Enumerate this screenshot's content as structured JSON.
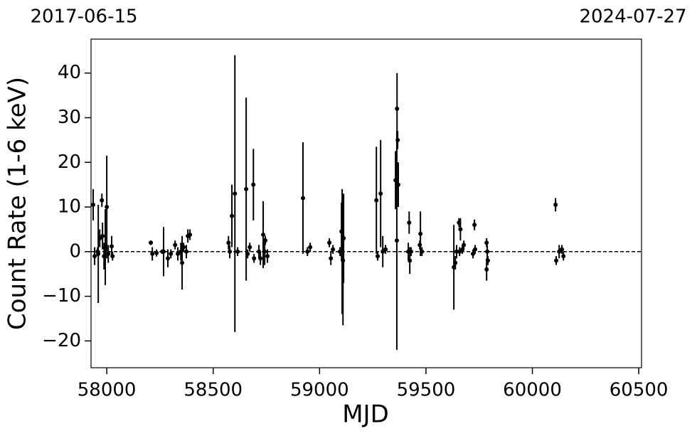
{
  "chart_data": {
    "type": "errorbar-scatter",
    "date_start": "2017-06-15",
    "date_end": "2024-07-27",
    "xlabel": "MJD",
    "ylabel": "Count Rate (1-6 keV)",
    "color": "#000000",
    "reference_line": 0,
    "xlim": [
      57926,
      60513
    ],
    "ylim": [
      -26,
      47.6
    ],
    "xticks": [
      58000,
      58500,
      59000,
      59500,
      60000,
      60500
    ],
    "yticks": [
      {
        "value": -20,
        "label": "−20"
      },
      {
        "value": -10,
        "label": "−10"
      },
      0,
      10,
      20,
      30,
      40
    ],
    "x": [
      57936,
      57943,
      57957,
      57960,
      57967,
      57977,
      57980,
      57987,
      57993,
      58000,
      58007,
      58023,
      58027,
      58207,
      58214,
      58234,
      58261,
      58267,
      58287,
      58301,
      58321,
      58334,
      58348,
      58354,
      58361,
      58374,
      58381,
      58391,
      58572,
      58578,
      58588,
      58602,
      58615,
      58655,
      58662,
      58672,
      58689,
      58692,
      58715,
      58722,
      58735,
      58742,
      58745,
      58755,
      58922,
      58943,
      58956,
      59046,
      59053,
      59063,
      59096,
      59103,
      59106,
      59110,
      59113,
      59267,
      59273,
      59287,
      59297,
      59310,
      59357,
      59364,
      59363,
      59367,
      59370,
      59417,
      59421,
      59424,
      59430,
      59471,
      59474,
      59481,
      59631,
      59638,
      59644,
      59655,
      59658,
      59662,
      59671,
      59678,
      59721,
      59728,
      59731,
      59785,
      59785,
      59788,
      59791,
      60109,
      60112,
      60126,
      60139,
      60146
    ],
    "values": [
      10.5,
      -1,
      0,
      -0.5,
      3,
      11.5,
      3.5,
      -1,
      1,
      10,
      -0.5,
      1.2,
      -1,
      2,
      -0.5,
      -0.3,
      0,
      0,
      -1.5,
      -0.5,
      1.5,
      -0.5,
      0,
      -2.5,
      1,
      0,
      3.5,
      3.8,
      2,
      0,
      8,
      13,
      0,
      14,
      -0.5,
      1,
      15,
      -1.5,
      0,
      -1.5,
      3.8,
      0,
      2.5,
      -1,
      12,
      0,
      1,
      2,
      -1.5,
      0.5,
      0,
      4.5,
      0,
      -2,
      3,
      11.5,
      -1,
      13,
      0,
      0.5,
      16,
      32,
      2.5,
      25,
      15,
      0,
      6.5,
      -2,
      0,
      1.5,
      4,
      0,
      -3.5,
      -2.5,
      0,
      6.5,
      0,
      5,
      0.5,
      1.5,
      -0.5,
      6,
      0.5,
      2,
      -4,
      0,
      -2,
      10.5,
      -2,
      0,
      0.5,
      -1
    ],
    "errors": [
      3.5,
      2,
      1,
      11,
      2,
      1.5,
      3,
      3,
      8.5,
      11.5,
      2,
      2.3,
      1,
      0.5,
      1.5,
      0.8,
      0.5,
      5.5,
      2,
      1,
      1,
      1.5,
      2,
      6,
      1,
      1.5,
      1.5,
      1.2,
      1.5,
      1.5,
      7,
      31,
      1,
      20.5,
      1,
      1,
      8,
      1,
      1.5,
      1.5,
      7.5,
      3,
      1,
      1.5,
      12.5,
      1,
      1,
      1,
      1.5,
      1,
      1,
      6.5,
      14,
      14.5,
      10,
      12,
      1,
      12,
      3.5,
      1,
      6.5,
      8,
      24.5,
      2,
      5,
      2,
      2.5,
      3,
      1,
      1,
      5,
      1,
      9.5,
      1.5,
      1.5,
      1,
      1,
      2.5,
      1,
      1,
      1,
      1.2,
      1,
      1,
      2.5,
      1.5,
      1,
      1.5,
      1,
      1.5,
      1,
      1
    ]
  }
}
